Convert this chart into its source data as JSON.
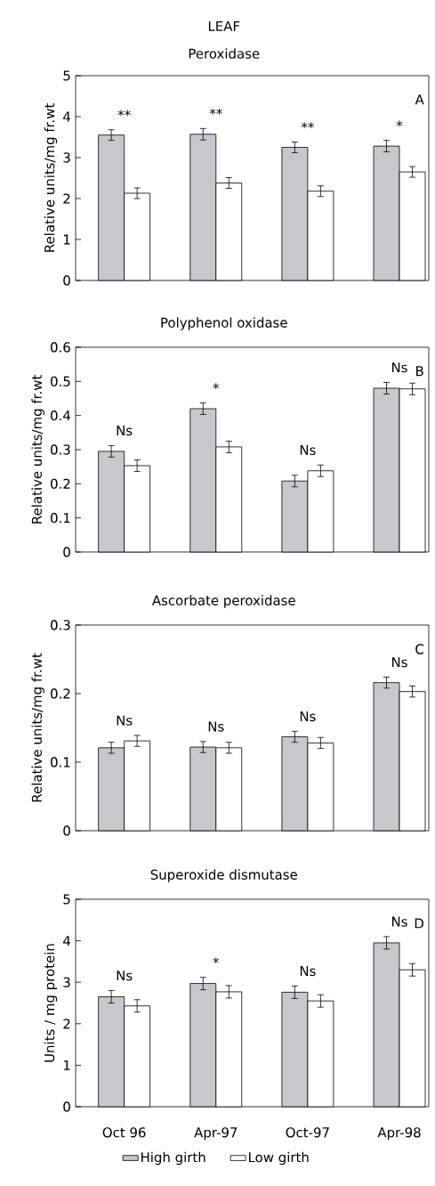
{
  "chart_data": [
    {
      "type": "bar",
      "title": "LEAF",
      "subtitle": "Peroxidase",
      "ylabel": "Relative units/mg fr.wt",
      "categories": [
        null,
        null,
        null,
        null
      ],
      "series": [
        {
          "color": "#c8c8cc",
          "values": [
            3.55,
            3.57,
            3.25,
            3.28
          ],
          "errors": [
            0.13,
            0.14,
            0.13,
            0.14
          ]
        },
        {
          "color": "#ffffff",
          "values": [
            2.13,
            2.38,
            2.18,
            2.65
          ],
          "errors": [
            0.13,
            0.13,
            0.13,
            0.13
          ]
        }
      ],
      "ylim": [
        0,
        5
      ],
      "yticks": [
        0,
        1,
        2,
        3,
        4,
        5
      ],
      "tick_labels": "y",
      "annotations": [
        "**",
        "**",
        "**",
        "*",
        "A"
      ]
    },
    {
      "type": "bar",
      "title": "Polyphenol oxidase",
      "ylabel": "Relative units/mg fr.wt",
      "categories": [
        null,
        null,
        null,
        null
      ],
      "series": [
        {
          "color": "#c8c8cc",
          "values": [
            0.295,
            0.42,
            0.208,
            0.48
          ],
          "errors": [
            0.017,
            0.017,
            0.017,
            0.017
          ]
        },
        {
          "color": "#ffffff",
          "values": [
            0.253,
            0.308,
            0.238,
            0.478
          ],
          "errors": [
            0.017,
            0.017,
            0.017,
            0.017
          ]
        }
      ],
      "ylim": [
        0,
        0.6
      ],
      "yticks": [
        0,
        0.1,
        0.2,
        0.3,
        0.4,
        0.5,
        0.6
      ],
      "tick_labels": "y",
      "annotations": [
        "Ns",
        "*",
        "Ns",
        "Ns",
        "B"
      ]
    },
    {
      "type": "bar",
      "title": "Ascorbate peroxidase",
      "ylabel": "Relative units/mg fr.wt",
      "categories": [
        null,
        null,
        null,
        null
      ],
      "series": [
        {
          "color": "#c8c8cc",
          "values": [
            0.121,
            0.122,
            0.137,
            0.216
          ],
          "errors": [
            0.008,
            0.008,
            0.008,
            0.008
          ]
        },
        {
          "color": "#ffffff",
          "values": [
            0.131,
            0.121,
            0.128,
            0.203
          ],
          "errors": [
            0.008,
            0.008,
            0.008,
            0.008
          ]
        }
      ],
      "ylim": [
        0,
        0.3
      ],
      "yticks": [
        0,
        0.1,
        0.2,
        0.3
      ],
      "tick_labels": "y",
      "annotations": [
        "Ns",
        "Ns",
        "Ns",
        "Ns",
        "C"
      ]
    },
    {
      "type": "bar",
      "title": "Superoxide dismutase",
      "ylabel": "Units / mg protein",
      "categories": [
        "Oct 96",
        "Apr-97",
        "Oct-97",
        "Apr-98"
      ],
      "series": [
        {
          "name": "High girth",
          "color": "#c8c8cc",
          "values": [
            2.65,
            2.97,
            2.76,
            3.95
          ],
          "errors": [
            0.15,
            0.15,
            0.15,
            0.15
          ]
        },
        {
          "name": "Low girth",
          "color": "#ffffff",
          "values": [
            2.43,
            2.77,
            2.55,
            3.3
          ],
          "errors": [
            0.15,
            0.15,
            0.15,
            0.15
          ]
        }
      ],
      "ylim": [
        0,
        5
      ],
      "yticks": [
        0,
        1,
        2,
        3,
        4,
        5
      ],
      "legend": "bottom",
      "annotations": [
        "Ns",
        "*",
        "Ns",
        "Ns",
        "D"
      ]
    }
  ]
}
